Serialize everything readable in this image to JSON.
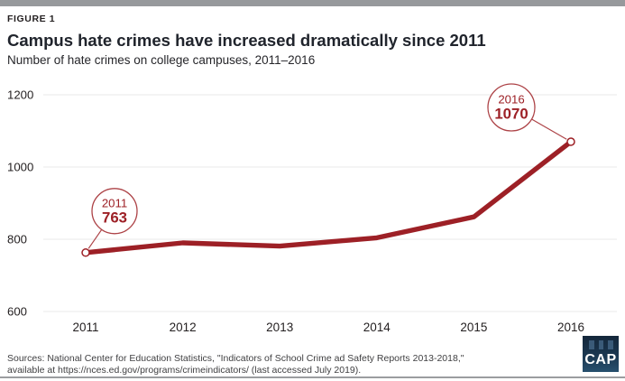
{
  "header": {
    "figure_label": "FIGURE 1",
    "title": "Campus hate crimes have increased dramatically since 2011",
    "subtitle": "Number of hate crimes on college campuses, 2011–2016"
  },
  "chart_data": {
    "type": "line",
    "title": "Campus hate crimes have increased dramatically since 2011",
    "subtitle": "Number of hate crimes on college campuses, 2011–2016",
    "x": [
      2011,
      2012,
      2013,
      2014,
      2015,
      2016
    ],
    "series": [
      {
        "name": "Hate crimes on college campuses",
        "values": [
          763,
          790,
          781,
          804,
          862,
          1070
        ]
      }
    ],
    "ylim": [
      600,
      1200
    ],
    "yticks": [
      600,
      800,
      1000,
      1200
    ],
    "grid": "horizontal-only",
    "legend": "none",
    "annotations": [
      {
        "x": 2011,
        "year_label": "2011",
        "value_label": "763"
      },
      {
        "x": 2016,
        "year_label": "2016",
        "value_label": "1070"
      }
    ]
  },
  "footer": {
    "sources_line1": "Sources: National Center for Education Statistics, \"Indicators of School Crime ad Safety Reports 2013-2018,\"",
    "sources_line2": "available at https://nces.ed.gov/programs/crimeindicators/ (last accessed July 2019).",
    "logo_text": "CAP"
  },
  "colors": {
    "accent_red": "#9d2026",
    "callout_red": "#ad4347",
    "grid_gray": "#eaeaea",
    "tick_text": "#231f20",
    "top_bar_gray": "#97999c",
    "logo_navy": "#1b3750"
  }
}
